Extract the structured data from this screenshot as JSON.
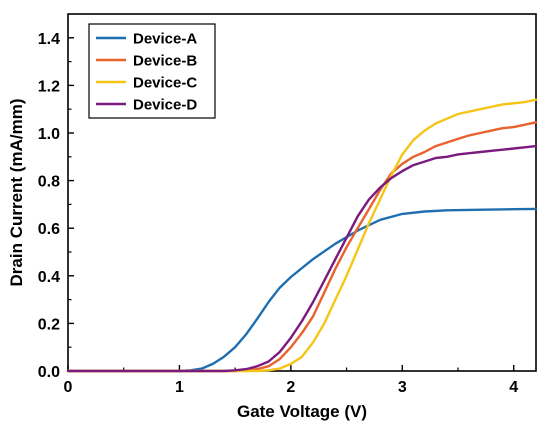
{
  "chart_data": {
    "type": "line",
    "title": "",
    "xlabel": "Gate Voltage (V)",
    "ylabel": "Drain Current (mA/mm)",
    "xlim": [
      0,
      4.2
    ],
    "ylim": [
      0,
      1.5
    ],
    "xticks": [
      0,
      1,
      2,
      3,
      4
    ],
    "yticks": [
      0.0,
      0.2,
      0.4,
      0.6,
      0.8,
      1.0,
      1.2,
      1.4
    ],
    "grid": false,
    "legend_position": "top-left",
    "series": [
      {
        "name": "Device-A",
        "color": "#1f6fb0",
        "x": [
          0,
          0.5,
          1.0,
          1.1,
          1.2,
          1.3,
          1.4,
          1.5,
          1.6,
          1.7,
          1.8,
          1.9,
          2.0,
          2.2,
          2.4,
          2.6,
          2.8,
          3.0,
          3.2,
          3.4,
          3.6,
          3.8,
          4.0,
          4.2
        ],
        "y": [
          0,
          0,
          0,
          0.003,
          0.01,
          0.03,
          0.06,
          0.1,
          0.155,
          0.22,
          0.29,
          0.35,
          0.395,
          0.47,
          0.535,
          0.59,
          0.635,
          0.66,
          0.67,
          0.675,
          0.677,
          0.678,
          0.68,
          0.681
        ]
      },
      {
        "name": "Device-B",
        "color": "#e8622c",
        "x": [
          0,
          1.5,
          1.6,
          1.7,
          1.8,
          1.9,
          2.0,
          2.1,
          2.2,
          2.3,
          2.4,
          2.5,
          2.6,
          2.7,
          2.8,
          2.9,
          3.0,
          3.1,
          3.2,
          3.3,
          3.4,
          3.5,
          3.6,
          3.7,
          3.8,
          3.9,
          4.0,
          4.1,
          4.2
        ],
        "y": [
          0,
          0,
          0.003,
          0.008,
          0.02,
          0.05,
          0.1,
          0.16,
          0.23,
          0.33,
          0.43,
          0.52,
          0.6,
          0.68,
          0.76,
          0.83,
          0.87,
          0.9,
          0.92,
          0.945,
          0.96,
          0.975,
          0.99,
          1.0,
          1.01,
          1.02,
          1.025,
          1.035,
          1.045
        ]
      },
      {
        "name": "Device-C",
        "color": "#f5c518",
        "x": [
          0,
          1.7,
          1.8,
          1.9,
          2.0,
          2.1,
          2.2,
          2.3,
          2.4,
          2.5,
          2.6,
          2.7,
          2.8,
          2.9,
          3.0,
          3.1,
          3.2,
          3.3,
          3.4,
          3.5,
          3.6,
          3.7,
          3.8,
          3.9,
          4.0,
          4.1,
          4.2
        ],
        "y": [
          0,
          0,
          0.003,
          0.01,
          0.03,
          0.06,
          0.12,
          0.2,
          0.3,
          0.4,
          0.51,
          0.62,
          0.72,
          0.82,
          0.91,
          0.97,
          1.01,
          1.04,
          1.06,
          1.08,
          1.09,
          1.1,
          1.11,
          1.12,
          1.125,
          1.13,
          1.14
        ]
      },
      {
        "name": "Device-D",
        "color": "#7b1a7e",
        "x": [
          0,
          1.4,
          1.5,
          1.6,
          1.7,
          1.8,
          1.9,
          2.0,
          2.1,
          2.2,
          2.3,
          2.4,
          2.5,
          2.6,
          2.7,
          2.8,
          2.9,
          3.0,
          3.1,
          3.2,
          3.3,
          3.4,
          3.5,
          3.6,
          3.7,
          3.8,
          3.9,
          4.0,
          4.1,
          4.2
        ],
        "y": [
          0,
          0,
          0.003,
          0.008,
          0.02,
          0.04,
          0.08,
          0.14,
          0.21,
          0.29,
          0.38,
          0.47,
          0.56,
          0.65,
          0.72,
          0.77,
          0.81,
          0.84,
          0.865,
          0.88,
          0.895,
          0.9,
          0.91,
          0.915,
          0.92,
          0.925,
          0.93,
          0.935,
          0.94,
          0.945
        ]
      }
    ]
  }
}
